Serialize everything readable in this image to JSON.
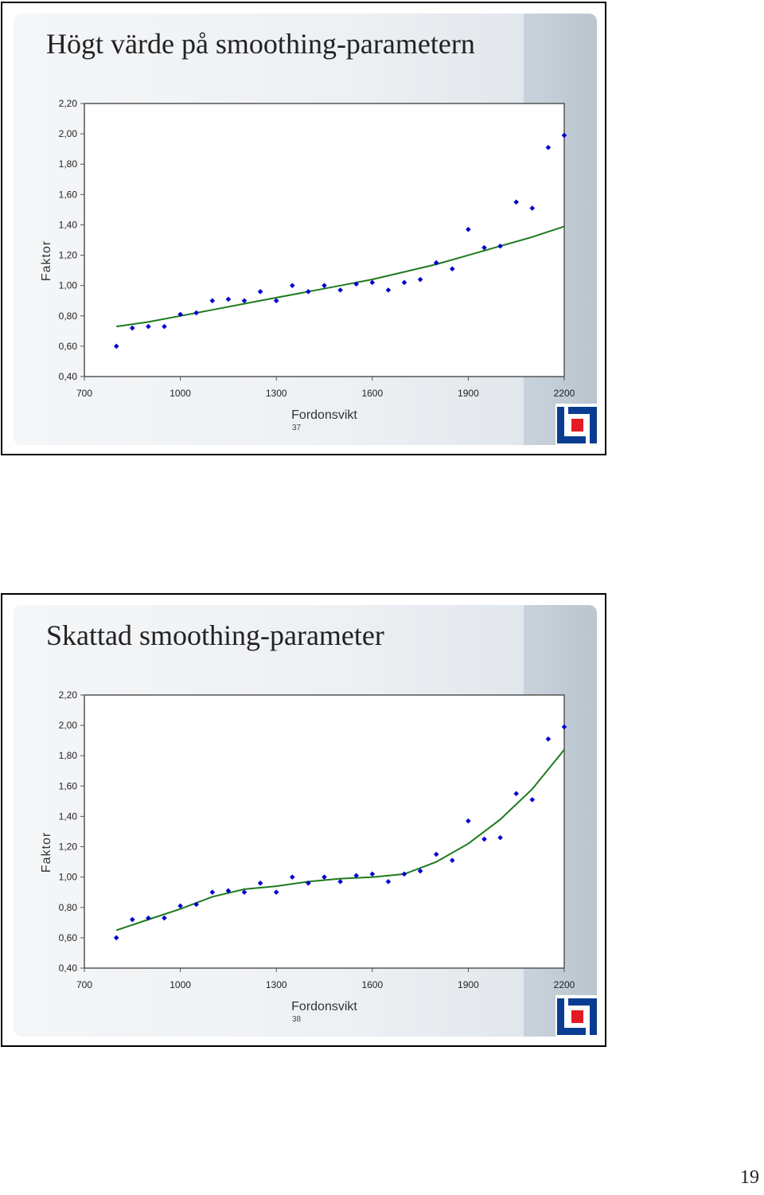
{
  "page_number": "19",
  "colors": {
    "points": "#0000cc",
    "curve": "#1e7a1e",
    "logo_blue": "#0a3d91",
    "logo_red": "#e31b23"
  },
  "logo_icon": "trafikverket-logo",
  "slides": [
    {
      "title": "Högt värde på smoothing-parametern",
      "number": "37"
    },
    {
      "title": "Skattad smoothing-parameter",
      "number": "38"
    }
  ],
  "chart_data": [
    {
      "type": "scatter",
      "xlabel": "Fordonsvikt",
      "ylabel": "Faktor",
      "xlim": [
        700,
        2200
      ],
      "ylim": [
        0.4,
        2.2
      ],
      "xticks": [
        "700",
        "1000",
        "1300",
        "1600",
        "1900",
        "2200"
      ],
      "yticks": [
        "2,20",
        "2,00",
        "1,80",
        "1,60",
        "1,40",
        "1,20",
        "1,00",
        "0,80",
        "0,60",
        "0,40"
      ],
      "points": [
        [
          800,
          0.6
        ],
        [
          850,
          0.72
        ],
        [
          900,
          0.73
        ],
        [
          950,
          0.73
        ],
        [
          1000,
          0.81
        ],
        [
          1050,
          0.82
        ],
        [
          1100,
          0.9
        ],
        [
          1150,
          0.91
        ],
        [
          1200,
          0.9
        ],
        [
          1250,
          0.96
        ],
        [
          1300,
          0.9
        ],
        [
          1350,
          1.0
        ],
        [
          1400,
          0.96
        ],
        [
          1450,
          1.0
        ],
        [
          1500,
          0.97
        ],
        [
          1550,
          1.01
        ],
        [
          1600,
          1.02
        ],
        [
          1650,
          0.97
        ],
        [
          1700,
          1.02
        ],
        [
          1750,
          1.04
        ],
        [
          1800,
          1.15
        ],
        [
          1850,
          1.11
        ],
        [
          1900,
          1.37
        ],
        [
          1950,
          1.25
        ],
        [
          2000,
          1.26
        ],
        [
          2050,
          1.55
        ],
        [
          2100,
          1.51
        ],
        [
          2150,
          1.91
        ],
        [
          2200,
          1.99
        ]
      ],
      "fitted_curve": [
        [
          800,
          0.73
        ],
        [
          900,
          0.76
        ],
        [
          1000,
          0.8
        ],
        [
          1100,
          0.84
        ],
        [
          1200,
          0.88
        ],
        [
          1300,
          0.92
        ],
        [
          1400,
          0.96
        ],
        [
          1500,
          1.0
        ],
        [
          1600,
          1.04
        ],
        [
          1700,
          1.09
        ],
        [
          1800,
          1.14
        ],
        [
          1900,
          1.2
        ],
        [
          2000,
          1.26
        ],
        [
          2100,
          1.32
        ],
        [
          2200,
          1.39
        ]
      ]
    },
    {
      "type": "scatter",
      "xlabel": "Fordonsvikt",
      "ylabel": "Faktor",
      "xlim": [
        700,
        2200
      ],
      "ylim": [
        0.4,
        2.2
      ],
      "xticks": [
        "700",
        "1000",
        "1300",
        "1600",
        "1900",
        "2200"
      ],
      "yticks": [
        "2,20",
        "2,00",
        "1,80",
        "1,60",
        "1,40",
        "1,20",
        "1,00",
        "0,80",
        "0,60",
        "0,40"
      ],
      "points": [
        [
          800,
          0.6
        ],
        [
          850,
          0.72
        ],
        [
          900,
          0.73
        ],
        [
          950,
          0.73
        ],
        [
          1000,
          0.81
        ],
        [
          1050,
          0.82
        ],
        [
          1100,
          0.9
        ],
        [
          1150,
          0.91
        ],
        [
          1200,
          0.9
        ],
        [
          1250,
          0.96
        ],
        [
          1300,
          0.9
        ],
        [
          1350,
          1.0
        ],
        [
          1400,
          0.96
        ],
        [
          1450,
          1.0
        ],
        [
          1500,
          0.97
        ],
        [
          1550,
          1.01
        ],
        [
          1600,
          1.02
        ],
        [
          1650,
          0.97
        ],
        [
          1700,
          1.02
        ],
        [
          1750,
          1.04
        ],
        [
          1800,
          1.15
        ],
        [
          1850,
          1.11
        ],
        [
          1900,
          1.37
        ],
        [
          1950,
          1.25
        ],
        [
          2000,
          1.26
        ],
        [
          2050,
          1.55
        ],
        [
          2100,
          1.51
        ],
        [
          2150,
          1.91
        ],
        [
          2200,
          1.99
        ]
      ],
      "fitted_curve": [
        [
          800,
          0.65
        ],
        [
          900,
          0.72
        ],
        [
          1000,
          0.79
        ],
        [
          1100,
          0.87
        ],
        [
          1200,
          0.92
        ],
        [
          1300,
          0.94
        ],
        [
          1400,
          0.97
        ],
        [
          1500,
          0.99
        ],
        [
          1600,
          1.0
        ],
        [
          1700,
          1.02
        ],
        [
          1800,
          1.1
        ],
        [
          1900,
          1.22
        ],
        [
          2000,
          1.38
        ],
        [
          2100,
          1.58
        ],
        [
          2200,
          1.84
        ]
      ]
    }
  ]
}
